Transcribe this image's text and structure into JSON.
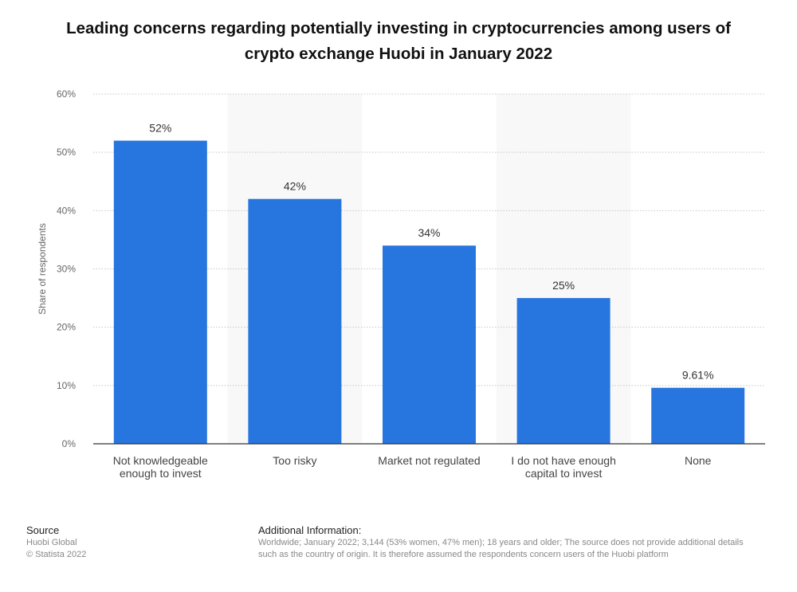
{
  "header": {
    "title_line1": "Leading concerns regarding potentially investing in cryptocurrencies among users of",
    "title_line2": "crypto exchange Huobi in January 2022"
  },
  "chart_data": {
    "type": "bar",
    "title": "Leading concerns regarding potentially investing in cryptocurrencies among users of crypto exchange Huobi in January 2022",
    "xlabel": "",
    "ylabel": "Share of respondents",
    "categories": [
      [
        "Not knowledgeable",
        "enough to invest"
      ],
      [
        "Too risky"
      ],
      [
        "Market not regulated"
      ],
      [
        "I do not have enough",
        "capital to invest"
      ],
      [
        "None"
      ]
    ],
    "values": [
      52,
      42,
      34,
      25,
      9.61
    ],
    "value_labels": [
      "52%",
      "42%",
      "34%",
      "25%",
      "9.61%"
    ],
    "ylim": [
      0,
      60
    ],
    "yticks": [
      0,
      10,
      20,
      30,
      40,
      50,
      60
    ],
    "ytick_labels": [
      "0%",
      "10%",
      "20%",
      "30%",
      "40%",
      "50%",
      "60%"
    ],
    "grid": true,
    "bar_color": "#2775de",
    "band_color": "#f8f8f8"
  },
  "footer": {
    "source_heading": "Source",
    "source_lines": [
      "Huobi Global",
      "© Statista 2022"
    ],
    "info_heading": "Additional Information:",
    "info_lines": [
      "Worldwide; January 2022; 3,144 (53% women, 47% men); 18 years and older; The source does not provide additional details",
      "such as the country of origin. It is therefore assumed the respondents concern users of the Huobi platform"
    ]
  }
}
